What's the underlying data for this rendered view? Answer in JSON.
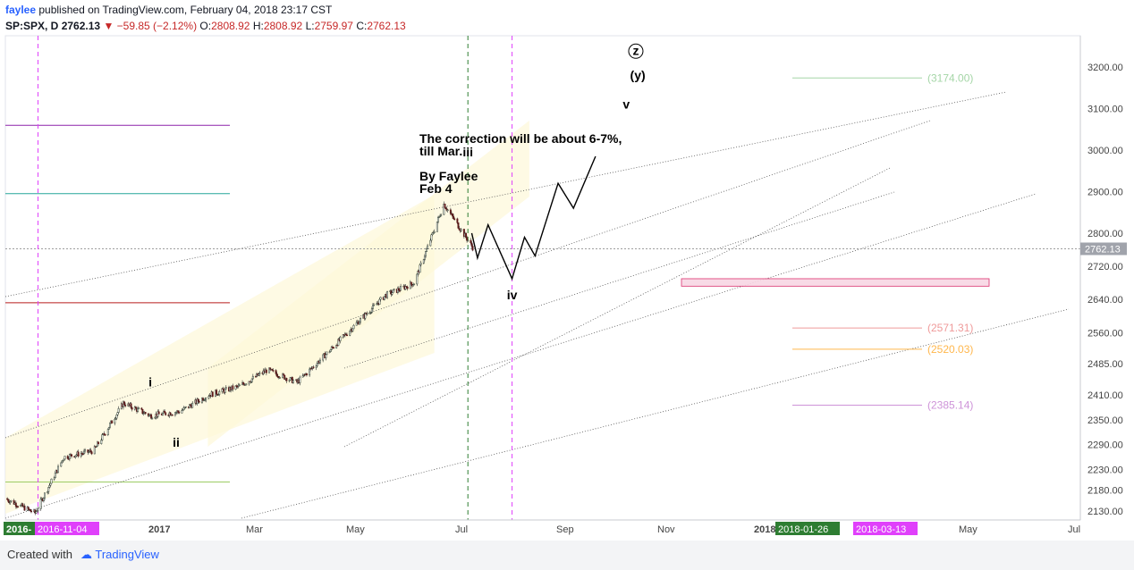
{
  "header": {
    "author": "faylee",
    "published": " published on TradingView.com, February 04, 2018 23:17 CST",
    "symbol": "SP:SPX, D",
    "last": "2762.13",
    "change": "−59.85 (−2.12%)",
    "o_label": "O:",
    "o": "2808.92",
    "h_label": "H:",
    "h": "2808.92",
    "l_label": "L:",
    "l": "2759.97",
    "c_label": "C:",
    "c": "2762.13"
  },
  "footer": {
    "created_with": "Created with",
    "brand": "TradingView"
  },
  "colors": {
    "up": "#ffffff",
    "down": "#5d1a1a",
    "up_border": "#2a3a2a",
    "pink": "#e040fb",
    "green_dash": "#2e7d32",
    "channel_fill": "#fdf8d8",
    "price_line": "#9e9e9e"
  },
  "chart_data": {
    "type": "candlestick",
    "symbol": "SP:SPX",
    "interval": "D",
    "ylim": [
      2100,
      3250
    ],
    "y_ticks": [
      "3200.00",
      "3100.00",
      "3000.00",
      "2900.00",
      "2800.00",
      "2720.00",
      "2640.00",
      "2560.00",
      "2485.00",
      "2410.00",
      "2350.00",
      "2290.00",
      "2230.00",
      "2180.00",
      "2130.00"
    ],
    "x_ticks": [
      "2016-11-04",
      "2017",
      "Mar",
      "May",
      "Jul",
      "Sep",
      "Nov",
      "2018",
      "2018-01-26",
      "2018-03-13",
      "May",
      "Jul"
    ],
    "x_first_label": "2016-",
    "highlight_dates": [
      "2016-11-04",
      "2018-01-26",
      "2018-03-13"
    ],
    "last_price_label": "2762.13",
    "monthly_path": [
      {
        "date": "2016-10",
        "value": 2160
      },
      {
        "date": "2016-11",
        "value": 2125
      },
      {
        "date": "2016-12",
        "value": 2260
      },
      {
        "date": "2017-01",
        "value": 2275
      },
      {
        "date": "2017-02",
        "value": 2390
      },
      {
        "date": "2017-03",
        "value": 2360
      },
      {
        "date": "2017-04",
        "value": 2370
      },
      {
        "date": "2017-05",
        "value": 2410
      },
      {
        "date": "2017-06",
        "value": 2430
      },
      {
        "date": "2017-07",
        "value": 2470
      },
      {
        "date": "2017-08",
        "value": 2440
      },
      {
        "date": "2017-09",
        "value": 2510
      },
      {
        "date": "2017-10",
        "value": 2580
      },
      {
        "date": "2017-11",
        "value": 2650
      },
      {
        "date": "2017-12",
        "value": 2680
      },
      {
        "date": "2018-01",
        "value": 2870
      },
      {
        "date": "2018-02",
        "value": 2762
      }
    ],
    "projection": [
      {
        "date": "2018-01-30",
        "value": 2800
      },
      {
        "date": "2018-02-05",
        "value": 2740
      },
      {
        "date": "2018-02-16",
        "value": 2820
      },
      {
        "date": "2018-03-13",
        "value": 2690
      },
      {
        "date": "2018-03-26",
        "value": 2790
      },
      {
        "date": "2018-04-06",
        "value": 2745
      },
      {
        "date": "2018-04-30",
        "value": 2920
      },
      {
        "date": "2018-05-16",
        "value": 2860
      },
      {
        "date": "2018-06-08",
        "value": 2985
      }
    ],
    "fib_levels": [
      {
        "label": "(3174.00)",
        "value": 3174.0,
        "color": "#a5d6a7"
      },
      {
        "label": "(2571.31)",
        "value": 2571.31,
        "color": "#ef9a9a"
      },
      {
        "label": "(2520.03)",
        "value": 2520.03,
        "color": "#ffb74d"
      },
      {
        "label": "(2385.14)",
        "value": 2385.14,
        "color": "#ce93d8"
      }
    ],
    "wave_labels": [
      {
        "text": "i",
        "date": "2017-03-01",
        "value": 2430
      },
      {
        "text": "ii",
        "date": "2017-03-28",
        "value": 2285
      },
      {
        "text": "iii",
        "date": "2018-01-26",
        "value": 2985
      },
      {
        "text": "iv",
        "date": "2018-03-13",
        "value": 2640
      },
      {
        "text": "v",
        "date": "2018-07-10",
        "value": 3100
      },
      {
        "text": "(y)",
        "date": "2018-07-22",
        "value": 3170
      },
      {
        "text": "z",
        "date": "2018-07-20",
        "value": 3230
      }
    ],
    "annotation": [
      "The correction will be about 6-7%,",
      "till Mar.",
      "",
      "By Faylee",
      "Feb 4"
    ],
    "horizontal_levels": [
      {
        "value": 3060,
        "color": "#8e24aa"
      },
      {
        "value": 2895,
        "color": "#26a69a"
      },
      {
        "value": 2632,
        "color": "#b71c1c"
      },
      {
        "value": 2200,
        "color": "#9ccc65"
      }
    ],
    "support_zone": [
      2672,
      2690
    ]
  }
}
